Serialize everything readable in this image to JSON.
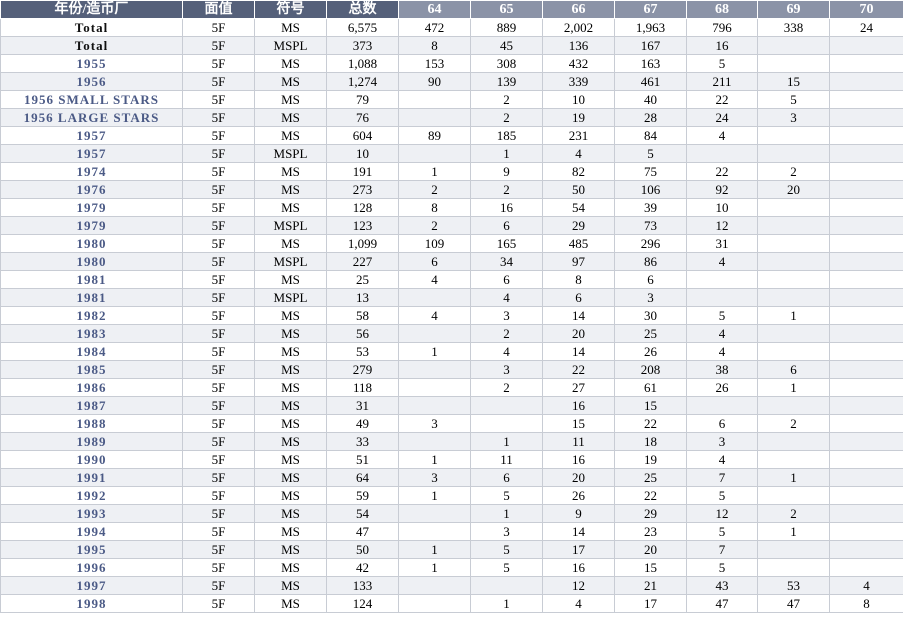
{
  "table": {
    "header": [
      "年份/造币厂",
      "面值",
      "符号",
      "总数",
      "64",
      "65",
      "66",
      "67",
      "68",
      "69",
      "70"
    ],
    "rows": [
      [
        "Total",
        "5F",
        "MS",
        "6,575",
        "472",
        "889",
        "2,002",
        "1,963",
        "796",
        "338",
        "24"
      ],
      [
        "Total",
        "5F",
        "MSPL",
        "373",
        "8",
        "45",
        "136",
        "167",
        "16",
        null,
        null
      ],
      [
        "1955",
        "5F",
        "MS",
        "1,088",
        "153",
        "308",
        "432",
        "163",
        "5",
        null,
        null
      ],
      [
        "1956",
        "5F",
        "MS",
        "1,274",
        "90",
        "139",
        "339",
        "461",
        "211",
        "15",
        null
      ],
      [
        "1956 SMALL STARS",
        "5F",
        "MS",
        "79",
        null,
        "2",
        "10",
        "40",
        "22",
        "5",
        null
      ],
      [
        "1956 LARGE STARS",
        "5F",
        "MS",
        "76",
        null,
        "2",
        "19",
        "28",
        "24",
        "3",
        null
      ],
      [
        "1957",
        "5F",
        "MS",
        "604",
        "89",
        "185",
        "231",
        "84",
        "4",
        null,
        null
      ],
      [
        "1957",
        "5F",
        "MSPL",
        "10",
        null,
        "1",
        "4",
        "5",
        null,
        null,
        null
      ],
      [
        "1974",
        "5F",
        "MS",
        "191",
        "1",
        "9",
        "82",
        "75",
        "22",
        "2",
        null
      ],
      [
        "1976",
        "5F",
        "MS",
        "273",
        "2",
        "2",
        "50",
        "106",
        "92",
        "20",
        null
      ],
      [
        "1979",
        "5F",
        "MS",
        "128",
        "8",
        "16",
        "54",
        "39",
        "10",
        null,
        null
      ],
      [
        "1979",
        "5F",
        "MSPL",
        "123",
        "2",
        "6",
        "29",
        "73",
        "12",
        null,
        null
      ],
      [
        "1980",
        "5F",
        "MS",
        "1,099",
        "109",
        "165",
        "485",
        "296",
        "31",
        null,
        null
      ],
      [
        "1980",
        "5F",
        "MSPL",
        "227",
        "6",
        "34",
        "97",
        "86",
        "4",
        null,
        null
      ],
      [
        "1981",
        "5F",
        "MS",
        "25",
        "4",
        "6",
        "8",
        "6",
        null,
        null,
        null
      ],
      [
        "1981",
        "5F",
        "MSPL",
        "13",
        null,
        "4",
        "6",
        "3",
        null,
        null,
        null
      ],
      [
        "1982",
        "5F",
        "MS",
        "58",
        "4",
        "3",
        "14",
        "30",
        "5",
        "1",
        null
      ],
      [
        "1983",
        "5F",
        "MS",
        "56",
        null,
        "2",
        "20",
        "25",
        "4",
        null,
        null
      ],
      [
        "1984",
        "5F",
        "MS",
        "53",
        "1",
        "4",
        "14",
        "26",
        "4",
        null,
        null
      ],
      [
        "1985",
        "5F",
        "MS",
        "279",
        null,
        "3",
        "22",
        "208",
        "38",
        "6",
        null
      ],
      [
        "1986",
        "5F",
        "MS",
        "118",
        null,
        "2",
        "27",
        "61",
        "26",
        "1",
        null
      ],
      [
        "1987",
        "5F",
        "MS",
        "31",
        null,
        null,
        "16",
        "15",
        null,
        null,
        null
      ],
      [
        "1988",
        "5F",
        "MS",
        "49",
        "3",
        null,
        "15",
        "22",
        "6",
        "2",
        null
      ],
      [
        "1989",
        "5F",
        "MS",
        "33",
        null,
        "1",
        "11",
        "18",
        "3",
        null,
        null
      ],
      [
        "1990",
        "5F",
        "MS",
        "51",
        "1",
        "11",
        "16",
        "19",
        "4",
        null,
        null
      ],
      [
        "1991",
        "5F",
        "MS",
        "64",
        "3",
        "6",
        "20",
        "25",
        "7",
        "1",
        null
      ],
      [
        "1992",
        "5F",
        "MS",
        "59",
        "1",
        "5",
        "26",
        "22",
        "5",
        null,
        null
      ],
      [
        "1993",
        "5F",
        "MS",
        "54",
        null,
        "1",
        "9",
        "29",
        "12",
        "2",
        null
      ],
      [
        "1994",
        "5F",
        "MS",
        "47",
        null,
        "3",
        "14",
        "23",
        "5",
        "1",
        null
      ],
      [
        "1995",
        "5F",
        "MS",
        "50",
        "1",
        "5",
        "17",
        "20",
        "7",
        null,
        null
      ],
      [
        "1996",
        "5F",
        "MS",
        "42",
        "1",
        "5",
        "16",
        "15",
        "5",
        null,
        null
      ],
      [
        "1997",
        "5F",
        "MS",
        "133",
        null,
        null,
        "12",
        "21",
        "43",
        "53",
        "4"
      ],
      [
        "1998",
        "5F",
        "MS",
        "124",
        null,
        "1",
        "4",
        "17",
        "47",
        "47",
        "8"
      ]
    ]
  }
}
